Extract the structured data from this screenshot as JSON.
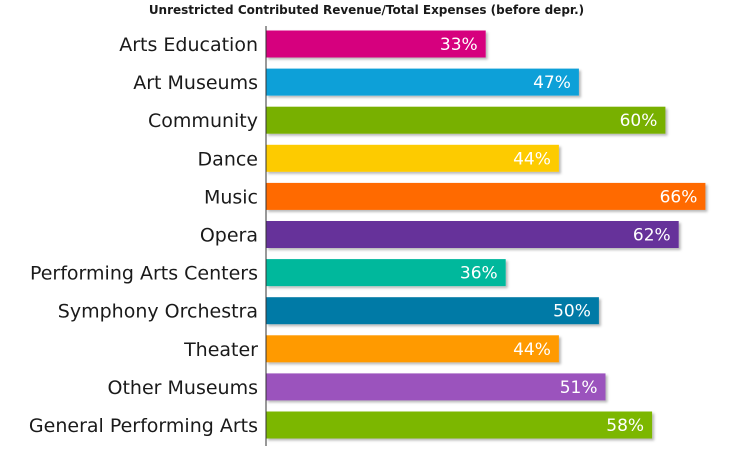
{
  "chart_data": {
    "type": "bar",
    "orientation": "horizontal",
    "title": "Unrestricted Contributed Revenue/Total Expenses (before depr.)",
    "xlabel": "",
    "ylabel": "",
    "xlim": [
      0,
      70
    ],
    "grid": false,
    "legend": "none",
    "categories": [
      "Arts Education",
      "Art Museums",
      "Community",
      "Dance",
      "Music",
      "Opera",
      "Performing Arts Centers",
      "Symphony Orchestra",
      "Theater",
      "Other Museums",
      "General Performing Arts"
    ],
    "values": [
      33,
      47,
      60,
      44,
      66,
      62,
      36,
      50,
      44,
      51,
      58
    ],
    "value_labels": [
      "33%",
      "47%",
      "60%",
      "44%",
      "66%",
      "62%",
      "36%",
      "50%",
      "44%",
      "51%",
      "58%"
    ],
    "colors": [
      "#d6047e",
      "#0ea0d8",
      "#78b000",
      "#fdcb00",
      "#ff6a00",
      "#66329a",
      "#00b89c",
      "#007aa6",
      "#ff9a00",
      "#9b52bd",
      "#7cb700"
    ]
  }
}
